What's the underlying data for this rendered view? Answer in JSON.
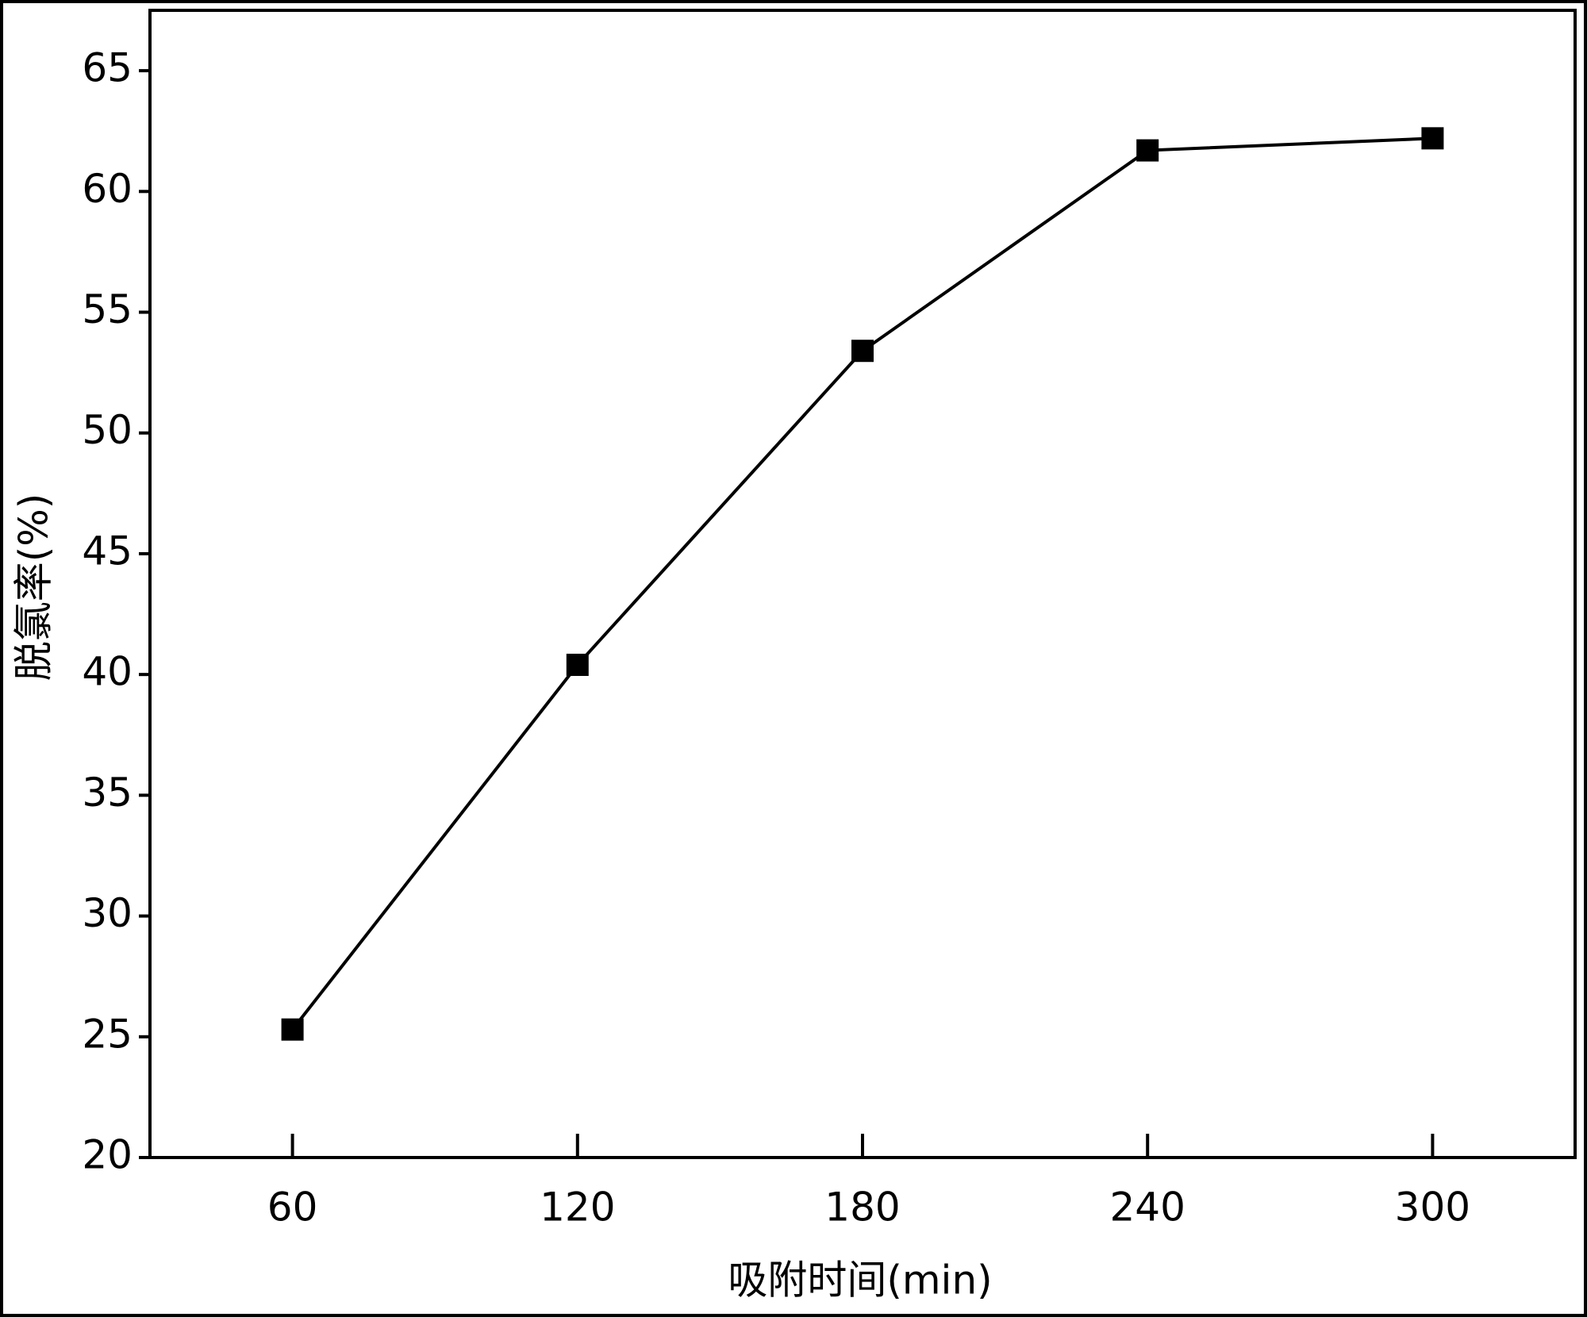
{
  "chart_data": {
    "type": "line",
    "x_label": "吸附时间(min)",
    "y_label": "脱氯率(%)",
    "x": [
      60,
      120,
      180,
      240,
      300
    ],
    "series": [
      {
        "name": "脱氯率",
        "color": "#000000",
        "values": [
          25.3,
          40.4,
          53.4,
          61.7,
          62.2
        ]
      }
    ],
    "xlim": [
      30,
      330
    ],
    "xticks": [
      60,
      120,
      180,
      240,
      300
    ],
    "ylim": [
      20,
      67.5
    ],
    "yticks": [
      20,
      25,
      30,
      35,
      40,
      45,
      50,
      55,
      60,
      65
    ],
    "marker": "square",
    "grid": false,
    "legend": false
  }
}
